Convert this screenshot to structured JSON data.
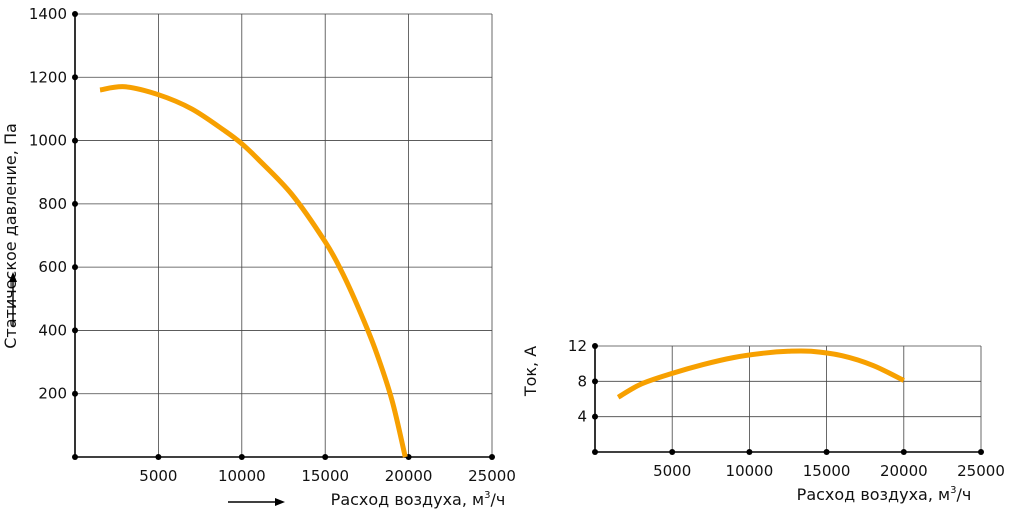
{
  "chart_data": [
    {
      "type": "line",
      "ylabel": "Статическое давление, Па",
      "xlabel_text": "Расход воздуха, м",
      "xlabel_sup": "3",
      "xlabel_tail": "/ч",
      "xlim": [
        0,
        25000
      ],
      "ylim": [
        0,
        1400
      ],
      "x_ticks": [
        5000,
        10000,
        15000,
        20000,
        25000
      ],
      "x_tick_labels": [
        "5000",
        "10000",
        "15000",
        "20000",
        "25000"
      ],
      "y_ticks": [
        200,
        400,
        600,
        800,
        1000,
        1200,
        1400
      ],
      "y_tick_labels": [
        "200",
        "400",
        "600",
        "800",
        "1000",
        "1200",
        "1400"
      ],
      "grid": true,
      "series": [
        {
          "color": "#F7A000",
          "x": [
            1500,
            3000,
            5000,
            7000,
            9000,
            10000,
            11000,
            13000,
            15000,
            16000,
            17000,
            18000,
            19000,
            19800
          ],
          "y": [
            1160,
            1170,
            1145,
            1100,
            1030,
            990,
            940,
            830,
            680,
            585,
            470,
            340,
            180,
            0
          ]
        }
      ]
    },
    {
      "type": "line",
      "ylabel": "Ток, А",
      "xlabel_text": "Расход воздуха, м",
      "xlabel_sup": "3",
      "xlabel_tail": "/ч",
      "xlim": [
        0,
        25000
      ],
      "ylim": [
        0,
        12
      ],
      "x_ticks": [
        5000,
        10000,
        15000,
        20000,
        25000
      ],
      "x_tick_labels": [
        "5000",
        "10000",
        "15000",
        "20000",
        "25000"
      ],
      "y_ticks": [
        4,
        8,
        12
      ],
      "y_tick_labels": [
        "4",
        "8",
        "12"
      ],
      "grid": true,
      "series": [
        {
          "color": "#F7A000",
          "x": [
            1500,
            3000,
            5000,
            7000,
            9000,
            11000,
            12500,
            14000,
            16000,
            18000,
            20000
          ],
          "y": [
            6.2,
            7.7,
            8.9,
            9.9,
            10.7,
            11.2,
            11.4,
            11.4,
            10.9,
            9.8,
            8.1
          ]
        }
      ]
    }
  ]
}
